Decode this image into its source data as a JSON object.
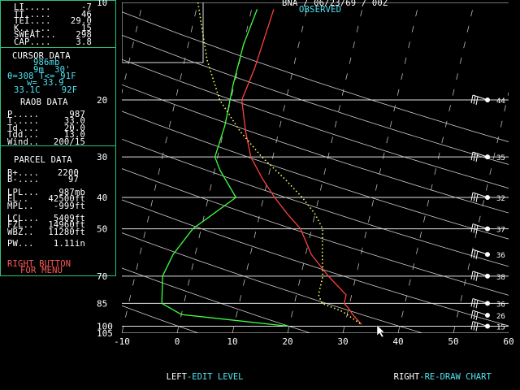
{
  "header": {
    "title": "BNA / 06/23/69 / 00Z",
    "subtitle": "OBSERVED"
  },
  "indices": [
    {
      "label": "LI",
      "dots": ".....",
      "value": "-7"
    },
    {
      "label": "TT",
      "dots": ".....",
      "value": "46"
    },
    {
      "label": "TEI",
      "dots": "....",
      "value": "29.0"
    },
    {
      "label": "K",
      "dots": "......",
      "value": "15"
    },
    {
      "label": "SWEAT",
      "dots": "...",
      "value": "298"
    },
    {
      "label": "CAP",
      "dots": "....",
      "value": "3.8"
    }
  ],
  "cursor": {
    "heading": "CURSOR DATA",
    "pressure": "986mb",
    "height": "9m  30'",
    "theta_line": "θ=308 T<= 91F",
    "w_line": "w= 33.9",
    "temp_line": "33.1C    92F"
  },
  "raob": {
    "heading": "RAOB DATA",
    "rows": [
      {
        "label": "P",
        "dots": ".....",
        "value": "987"
      },
      {
        "label": "T",
        "dots": ".....",
        "value": "33.0"
      },
      {
        "label": "Td",
        "dots": "....",
        "value": "20.0"
      },
      {
        "label": "Tdd",
        "dots": "...",
        "value": "13.0"
      },
      {
        "label": "Wind",
        "dots": "..",
        "value": "200/15"
      }
    ]
  },
  "parcel": {
    "heading": "PARCEL DATA",
    "rows1": [
      {
        "label": "B+",
        "dots": "....",
        "value": "2200"
      },
      {
        "label": "B-",
        "dots": "....",
        "value": "97"
      }
    ],
    "rows2": [
      {
        "label": "LPL",
        "dots": "...",
        "value": "987mb"
      },
      {
        "label": "EL",
        "dots": "..",
        "value": "42500ft"
      },
      {
        "label": "MPL",
        "dots": "..",
        "value": "-999ft"
      }
    ],
    "rows3": [
      {
        "label": "LCL",
        "dots": "...",
        "value": "5409ft"
      },
      {
        "label": "FZL",
        "dots": "..",
        "value": "14960ft"
      },
      {
        "label": "WBZ",
        "dots": "..",
        "value": "11280ft"
      }
    ],
    "pw": {
      "label": "PW",
      "dots": "...",
      "value": "1.11in"
    },
    "menu_line1": "RIGHT BUTTON",
    "menu_line2": "FOR MENU"
  },
  "footer": {
    "left_key": "LEFT",
    "left_text": "-EDIT LEVEL",
    "right_key": "RIGHT",
    "right_text": "-RE-DRAW CHART"
  },
  "colors": {
    "border": "#2fbf7f",
    "temperature": "#ff4040",
    "dewpoint": "#40ff40",
    "parcel": "#ffff60",
    "cyan": "#4fe3f2",
    "red_label": "#ff5858"
  },
  "chart_data": {
    "type": "line",
    "x_ticks": [
      "-10",
      "0",
      "10",
      "20",
      "30",
      "40",
      "50",
      "60"
    ],
    "xlim": [
      -10,
      60
    ],
    "y_labels": [
      "10",
      "20",
      "30",
      "40",
      "50",
      "70",
      "85",
      "100",
      "105"
    ],
    "y_values": [
      100,
      200,
      300,
      400,
      500,
      700,
      850,
      1000,
      1050
    ],
    "ylim": [
      100,
      1050
    ],
    "series": [
      {
        "points": [
          [
            1,
            105
          ],
          [
            0,
            135
          ],
          [
            -0.2,
            180
          ],
          [
            0,
            240
          ],
          [
            -0.5,
            300
          ],
          [
            1,
            330
          ],
          [
            5,
            400
          ],
          [
            -1.5,
            500
          ],
          [
            -4,
            600
          ],
          [
            -5,
            700
          ],
          [
            -4,
            850
          ],
          [
            0,
            920
          ],
          [
            20,
            1000
          ]
        ]
      },
      {
        "points": [
          [
            4,
            105
          ],
          [
            3,
            160
          ],
          [
            2,
            200
          ],
          [
            4,
            250
          ],
          [
            6,
            300
          ],
          [
            9,
            350
          ],
          [
            12,
            400
          ],
          [
            15,
            450
          ],
          [
            18,
            500
          ],
          [
            21,
            600
          ],
          [
            25,
            700
          ],
          [
            29,
            800
          ],
          [
            29,
            850
          ],
          [
            30,
            880
          ],
          [
            31,
            920
          ],
          [
            33,
            987
          ]
        ]
      },
      {
        "points": [
          [
            -10,
            100
          ],
          [
            -6,
            150
          ],
          [
            -2,
            200
          ],
          [
            3,
            250
          ],
          [
            8,
            300
          ],
          [
            13,
            350
          ],
          [
            17,
            400
          ],
          [
            20,
            450
          ],
          [
            22,
            500
          ],
          [
            23,
            600
          ],
          [
            24,
            700
          ],
          [
            24,
            800
          ],
          [
            25,
            850
          ],
          [
            29,
            900
          ],
          [
            33,
            987
          ]
        ]
      }
    ],
    "wind_levels": [
      {
        "pressure": 200,
        "value": "44"
      },
      {
        "pressure": 300,
        "value": "35"
      },
      {
        "pressure": 400,
        "value": "32"
      },
      {
        "pressure": 500,
        "value": "37"
      },
      {
        "pressure": 600,
        "value": "36"
      },
      {
        "pressure": 700,
        "value": "38"
      },
      {
        "pressure": 850,
        "value": "36"
      },
      {
        "pressure": 925,
        "value": "26"
      },
      {
        "pressure": 1000,
        "value": "15"
      }
    ]
  }
}
